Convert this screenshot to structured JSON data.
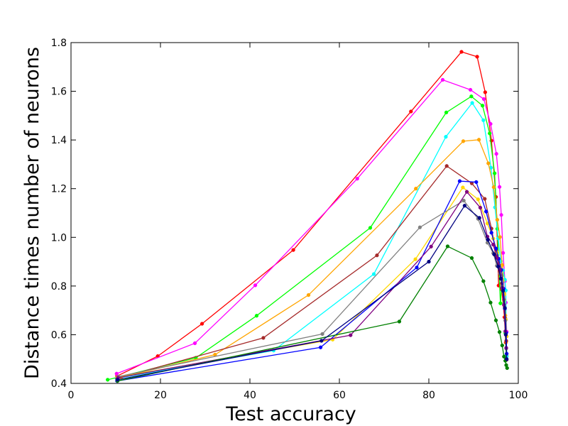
{
  "chart_data": {
    "type": "line",
    "title": "",
    "xlabel": "Test accuracy",
    "ylabel": "Distance times number of neurons",
    "xlim": [
      0,
      100
    ],
    "ylim": [
      0.4,
      1.8
    ],
    "xticks": [
      "0",
      "20",
      "40",
      "60",
      "80",
      "100"
    ],
    "yticks": [
      "0.4",
      "0.6",
      "0.8",
      "1.0",
      "1.2",
      "1.4",
      "1.6",
      "1.8"
    ],
    "grid": false,
    "legend": "none",
    "series": [
      {
        "color": "#ff0000",
        "x": [
          10.3,
          19.4,
          29.3,
          49.7,
          76.0,
          87.3,
          90.8,
          92.6,
          94.0,
          95.0,
          95.6,
          96.3,
          96.9,
          97.2,
          97.4
        ],
        "y": [
          0.43,
          0.512,
          0.645,
          0.948,
          1.517,
          1.762,
          1.742,
          1.596,
          1.397,
          1.166,
          0.802,
          0.785,
          0.672,
          0.568,
          0.512
        ]
      },
      {
        "color": "#ff00ff",
        "x": [
          10.2,
          27.7,
          41.2,
          64.0,
          83.1,
          89.3,
          92.3,
          93.8,
          95.1,
          95.8,
          96.2,
          96.6,
          97.0,
          97.2,
          97.4
        ],
        "y": [
          0.44,
          0.565,
          0.803,
          1.241,
          1.647,
          1.606,
          1.568,
          1.466,
          1.343,
          1.207,
          1.092,
          0.936,
          0.82,
          0.732,
          0.612
        ]
      },
      {
        "color": "#00ff00",
        "x": [
          8.2,
          27.9,
          41.5,
          66.9,
          83.9,
          89.5,
          92.0,
          93.6,
          94.7,
          95.3,
          96.0,
          96.5,
          96.9,
          97.1,
          97.3
        ],
        "y": [
          0.415,
          0.505,
          0.678,
          1.039,
          1.513,
          1.579,
          1.541,
          1.427,
          1.263,
          1.035,
          0.729,
          0.845,
          0.739,
          0.607,
          0.514
        ]
      },
      {
        "color": "#00ffff",
        "x": [
          10.2,
          45.3,
          67.7,
          83.8,
          89.7,
          92.2,
          93.9,
          94.8,
          95.5,
          96.1,
          96.6,
          97.0,
          97.2,
          97.4
        ],
        "y": [
          0.42,
          0.535,
          0.849,
          1.413,
          1.552,
          1.481,
          1.286,
          1.123,
          0.996,
          0.902,
          0.864,
          0.826,
          0.782,
          0.51
        ]
      },
      {
        "color": "#ffa500",
        "x": [
          11.2,
          32.2,
          53.1,
          77.1,
          87.7,
          91.2,
          93.3,
          94.5,
          95.3,
          95.9,
          96.4,
          96.8,
          97.1,
          97.3
        ],
        "y": [
          0.425,
          0.518,
          0.763,
          1.2,
          1.395,
          1.401,
          1.304,
          1.206,
          1.072,
          1.001,
          0.886,
          0.771,
          0.679,
          0.572
        ]
      },
      {
        "color": "#a52a2a",
        "x": [
          10.3,
          43.0,
          68.4,
          84.0,
          89.6,
          92.5,
          94.0,
          95.1,
          95.8,
          96.3,
          96.8,
          97.1,
          97.3
        ],
        "y": [
          0.42,
          0.587,
          0.926,
          1.293,
          1.222,
          1.158,
          1.036,
          0.927,
          0.881,
          0.811,
          0.744,
          0.667,
          0.575
        ]
      },
      {
        "color": "#ffd700",
        "x": [
          10.4,
          58.5,
          77.0,
          87.6,
          91.0,
          93.1,
          94.4,
          95.3,
          96.0,
          96.5,
          96.9,
          97.2,
          97.4
        ],
        "y": [
          0.425,
          0.58,
          0.91,
          1.205,
          1.156,
          1.057,
          0.995,
          0.937,
          0.88,
          0.822,
          0.766,
          0.662,
          0.593
        ]
      },
      {
        "color": "#0000ff",
        "x": [
          10.3,
          55.8,
          77.3,
          86.9,
          90.6,
          92.8,
          94.0,
          95.0,
          95.6,
          96.2,
          96.7,
          97.0,
          97.3,
          97.4
        ],
        "y": [
          0.41,
          0.548,
          0.876,
          1.231,
          1.227,
          1.106,
          1.019,
          0.954,
          0.912,
          0.866,
          0.789,
          0.707,
          0.608,
          0.522
        ]
      },
      {
        "color": "#808080",
        "x": [
          10.6,
          56.2,
          78.0,
          87.8,
          91.0,
          93.1,
          94.4,
          95.2,
          95.9,
          96.4,
          96.8,
          97.1,
          97.3
        ],
        "y": [
          0.428,
          0.603,
          1.041,
          1.151,
          1.076,
          0.978,
          0.935,
          0.883,
          0.852,
          0.798,
          0.727,
          0.658,
          0.543
        ]
      },
      {
        "color": "#800080",
        "x": [
          10.5,
          62.5,
          80.5,
          88.5,
          91.5,
          93.1,
          94.4,
          95.2,
          95.9,
          96.4,
          96.8,
          97.1,
          97.3,
          97.4
        ],
        "y": [
          0.423,
          0.598,
          0.962,
          1.187,
          1.122,
          1.003,
          0.97,
          0.916,
          0.866,
          0.792,
          0.722,
          0.614,
          0.546,
          0.497
        ]
      },
      {
        "color": "#008000",
        "x": [
          10.4,
          73.4,
          84.2,
          89.6,
          92.2,
          93.8,
          95.0,
          95.8,
          96.4,
          96.8,
          97.1,
          97.3,
          97.5
        ],
        "y": [
          0.41,
          0.654,
          0.963,
          0.915,
          0.82,
          0.732,
          0.659,
          0.611,
          0.556,
          0.51,
          0.493,
          0.475,
          0.463
        ]
      },
      {
        "color": "#000080",
        "x": [
          10.4,
          56.0,
          80.0,
          88.0,
          91.3,
          93.2,
          94.6,
          95.5,
          96.1,
          96.6,
          97.0,
          97.2,
          97.4
        ],
        "y": [
          0.415,
          0.575,
          0.9,
          1.13,
          1.08,
          0.99,
          0.93,
          0.88,
          0.83,
          0.78,
          0.71,
          0.6,
          0.5
        ]
      }
    ]
  }
}
